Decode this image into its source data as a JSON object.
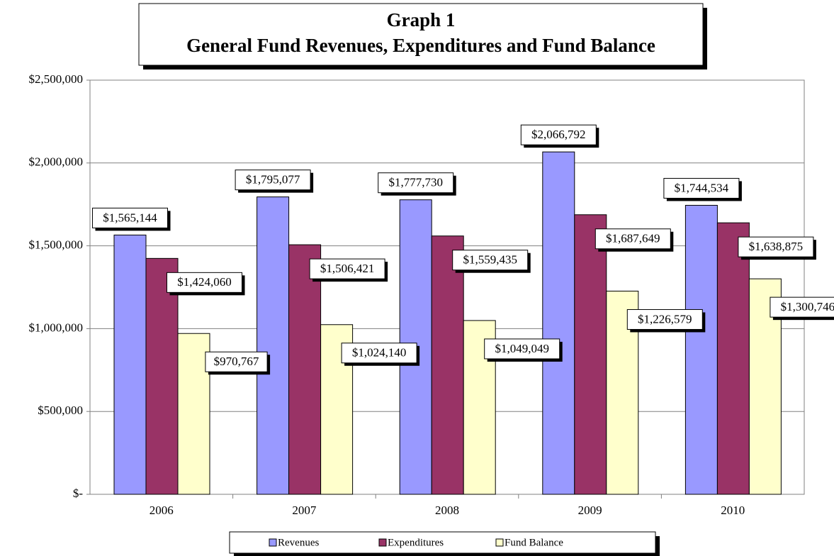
{
  "chart_data": {
    "type": "bar",
    "title": [
      "Graph 1",
      "General Fund Revenues, Expenditures and Fund Balance"
    ],
    "categories": [
      "2006",
      "2007",
      "2008",
      "2009",
      "2010"
    ],
    "series": [
      {
        "name": "Revenues",
        "color": "#9999ff",
        "values": [
          1565144,
          1795077,
          1777730,
          2066792,
          1744534
        ],
        "value_labels": [
          "$1,565,144",
          "$1,795,077",
          "$1,777,730",
          "$2,066,792",
          "$1,744,534"
        ]
      },
      {
        "name": "Expenditures",
        "color": "#993366",
        "values": [
          1424060,
          1506421,
          1559435,
          1687649,
          1638875
        ],
        "value_labels": [
          "$1,424,060",
          "$1,506,421",
          "$1,559,435",
          "$1,687,649",
          "$1,638,875"
        ]
      },
      {
        "name": "Fund Balance",
        "color": "#ffffcc",
        "values": [
          970767,
          1024140,
          1049049,
          1226579,
          1300746
        ],
        "value_labels": [
          "$970,767",
          "$1,024,140",
          "$1,049,049",
          "$1,226,579",
          "$1,300,746"
        ]
      }
    ],
    "ylim": [
      0,
      2500000
    ],
    "yticks": [
      {
        "value": 0,
        "label": "$-"
      },
      {
        "value": 500000,
        "label": "$500,000"
      },
      {
        "value": 1000000,
        "label": "$1,000,000"
      },
      {
        "value": 1500000,
        "label": "$1,500,000"
      },
      {
        "value": 2000000,
        "label": "$2,000,000"
      },
      {
        "value": 2500000,
        "label": "$2,500,000"
      }
    ],
    "grid": true,
    "legend": "bottom"
  }
}
